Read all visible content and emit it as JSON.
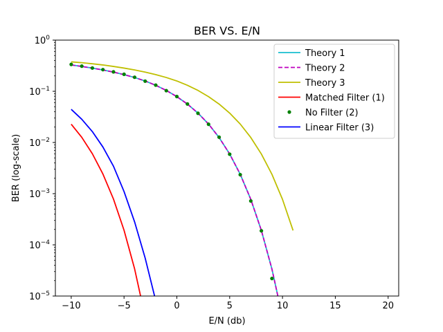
{
  "chart_data": {
    "type": "line",
    "title": "BER VS. E/N",
    "xlabel": "E/N (db)",
    "ylabel": "BER (log-scale)",
    "xlim": [
      -11.5,
      21.0
    ],
    "ylim": [
      1e-05,
      1
    ],
    "yscale": "log",
    "grid": false,
    "legend_position": "top-right",
    "x_ticks": [
      -10,
      -5,
      0,
      5,
      10,
      15,
      20
    ],
    "x_tick_labels": [
      "−10",
      "−5",
      "0",
      "5",
      "10",
      "15",
      "20"
    ],
    "y_ticks": [
      1e-05,
      0.0001,
      0.001,
      0.01,
      0.1,
      1
    ],
    "y_tick_labels": [
      {
        "base": "10",
        "exp": "−5"
      },
      {
        "base": "10",
        "exp": "−4"
      },
      {
        "base": "10",
        "exp": "−3"
      },
      {
        "base": "10",
        "exp": "−2"
      },
      {
        "base": "10",
        "exp": "−1"
      },
      {
        "base": "10",
        "exp": "0"
      }
    ],
    "series": [
      {
        "name": "Theory 1",
        "color": "#17becf",
        "style": "solid",
        "x": [
          -10,
          -9,
          -8,
          -7,
          -6,
          -5,
          -4,
          -3,
          -2,
          -1,
          0,
          1,
          2,
          3,
          4,
          5,
          6,
          7,
          8,
          9,
          10
        ],
        "y": [
          0.327,
          0.306,
          0.284,
          0.261,
          0.237,
          0.212,
          0.186,
          0.159,
          0.131,
          0.104,
          0.0786,
          0.0563,
          0.0375,
          0.0229,
          0.0125,
          0.00595,
          0.00239,
          0.000773,
          0.000191,
          3.36e-05,
          3.87e-06
        ]
      },
      {
        "name": "Theory 2",
        "color": "#bf00bf",
        "style": "dashed",
        "x": [
          -10,
          -9,
          -8,
          -7,
          -6,
          -5,
          -4,
          -3,
          -2,
          -1,
          0,
          1,
          2,
          3,
          4,
          5,
          6,
          7,
          8,
          9,
          10
        ],
        "y": [
          0.327,
          0.306,
          0.284,
          0.261,
          0.237,
          0.212,
          0.186,
          0.159,
          0.131,
          0.104,
          0.0786,
          0.0563,
          0.0375,
          0.0229,
          0.0125,
          0.00595,
          0.00239,
          0.000773,
          0.000191,
          3.36e-05,
          3.87e-06
        ]
      },
      {
        "name": "Theory 3",
        "color": "#bfbf00",
        "style": "solid",
        "x": [
          -10,
          -9,
          -8,
          -7,
          -6,
          -5,
          -4,
          -3,
          -2,
          -1,
          0,
          1,
          2,
          3,
          4,
          5,
          6,
          7,
          8,
          9,
          10,
          11
        ],
        "y": [
          0.376,
          0.362,
          0.345,
          0.327,
          0.306,
          0.284,
          0.261,
          0.237,
          0.212,
          0.186,
          0.159,
          0.131,
          0.104,
          0.0786,
          0.0563,
          0.0375,
          0.0229,
          0.0125,
          0.00595,
          0.00239,
          0.000773,
          0.000191
        ]
      },
      {
        "name": "Matched Filter (1)",
        "color": "#ff0000",
        "style": "solid",
        "x": [
          -10,
          -9,
          -8,
          -7,
          -6,
          -5,
          -4,
          -3
        ],
        "y": [
          0.0228,
          0.0126,
          0.00603,
          0.00242,
          0.000784,
          0.000193,
          3.4e-05,
          3.9e-06
        ]
      },
      {
        "name": "No Filter (2)",
        "color": "#008000",
        "style": "dots",
        "x": [
          -10,
          -9,
          -8,
          -7,
          -6,
          -5,
          -4,
          -3,
          -2,
          -1,
          0,
          1,
          2,
          3,
          4,
          5,
          6,
          7,
          8,
          9
        ],
        "y": [
          0.335,
          0.31,
          0.285,
          0.265,
          0.24,
          0.215,
          0.188,
          0.158,
          0.132,
          0.103,
          0.079,
          0.0565,
          0.0372,
          0.0227,
          0.0127,
          0.0059,
          0.00235,
          0.00072,
          0.000188,
          2.2e-05
        ]
      },
      {
        "name": "Linear Filter (3)",
        "color": "#0000ff",
        "style": "solid",
        "x": [
          -10,
          -9,
          -8,
          -7,
          -6,
          -5,
          -4,
          -3,
          -2,
          -1
        ],
        "y": [
          0.0444,
          0.0284,
          0.0163,
          0.00815,
          0.00344,
          0.0011,
          0.000281,
          5.52e-05,
          8.1e-06,
          1e-06
        ]
      }
    ]
  }
}
